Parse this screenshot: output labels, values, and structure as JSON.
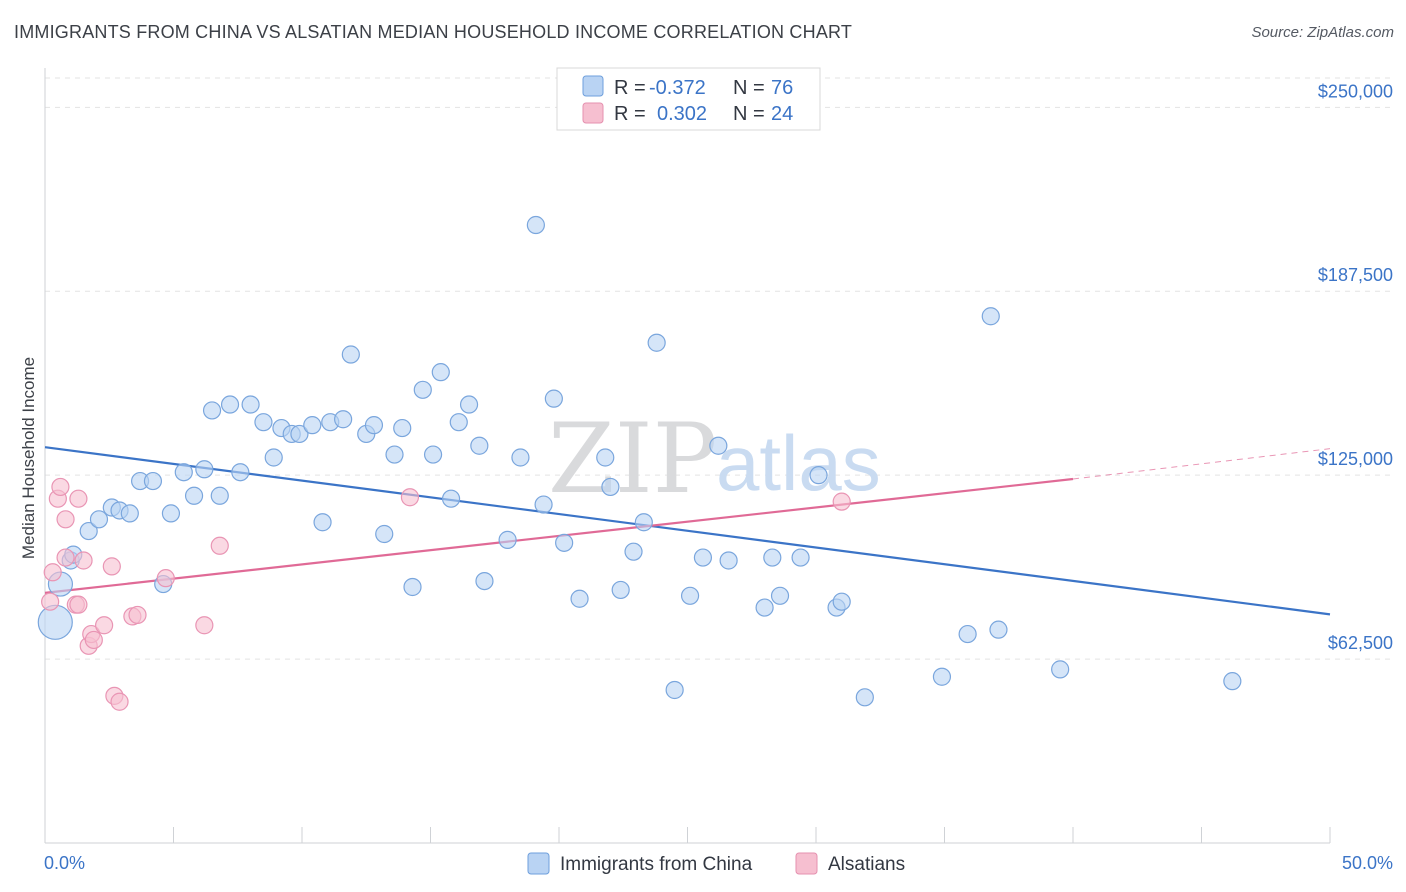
{
  "title": "IMMIGRANTS FROM CHINA VS ALSATIAN MEDIAN HOUSEHOLD INCOME CORRELATION CHART",
  "source": "Source: ZipAtlas.com",
  "watermark": {
    "part1": "ZIP",
    "part2": "atlas"
  },
  "colors": {
    "blue": "#3b74c7",
    "blue_fill": "#b9d3f3",
    "pink": "#e06a96",
    "pink_fill": "#f6bfd0",
    "text": "#333842"
  },
  "legend": {
    "blue": {
      "r_label": "R =",
      "r_value": "-0.372",
      "n_label": "N =",
      "n_value": "76"
    },
    "pink": {
      "r_label": "R =",
      "r_value": "0.302",
      "n_label": "N =",
      "n_value": "24"
    }
  },
  "chart_data": {
    "type": "scatter",
    "title": "IMMIGRANTS FROM CHINA VS ALSATIAN MEDIAN HOUSEHOLD INCOME CORRELATION CHART",
    "xlabel": "",
    "ylabel": "Median Household Income",
    "xlim": [
      0,
      50
    ],
    "ylim": [
      0,
      262000
    ],
    "x_tick_labels": [
      "0.0%",
      "50.0%"
    ],
    "y_ticks": [
      62500,
      125000,
      187500,
      250000
    ],
    "y_tick_labels": [
      "$62,500",
      "$125,000",
      "$187,500",
      "$250,000"
    ],
    "grid": true,
    "legend_position": "top-center",
    "series": [
      {
        "name": "Immigrants from China",
        "color": "#3b74c7",
        "trend": {
          "x": [
            0,
            50
          ],
          "y": [
            134500,
            77700
          ]
        },
        "points": [
          {
            "x": 0.4,
            "y": 75000,
            "s": 3
          },
          {
            "x": 0.6,
            "y": 88000,
            "s": 2
          },
          {
            "x": 1.0,
            "y": 96000,
            "s": 1
          },
          {
            "x": 1.1,
            "y": 98000,
            "s": 1
          },
          {
            "x": 1.7,
            "y": 106000,
            "s": 1
          },
          {
            "x": 2.1,
            "y": 110000,
            "s": 1
          },
          {
            "x": 2.6,
            "y": 114000,
            "s": 1
          },
          {
            "x": 2.9,
            "y": 113000,
            "s": 1
          },
          {
            "x": 3.3,
            "y": 112000,
            "s": 1
          },
          {
            "x": 3.7,
            "y": 123000,
            "s": 1
          },
          {
            "x": 4.2,
            "y": 123000,
            "s": 1
          },
          {
            "x": 4.6,
            "y": 88000,
            "s": 1
          },
          {
            "x": 4.9,
            "y": 112000,
            "s": 1
          },
          {
            "x": 5.4,
            "y": 126000,
            "s": 1
          },
          {
            "x": 5.8,
            "y": 118000,
            "s": 1
          },
          {
            "x": 6.2,
            "y": 127000,
            "s": 1
          },
          {
            "x": 6.5,
            "y": 147000,
            "s": 1
          },
          {
            "x": 6.8,
            "y": 118000,
            "s": 1
          },
          {
            "x": 7.2,
            "y": 149000,
            "s": 1
          },
          {
            "x": 7.6,
            "y": 126000,
            "s": 1
          },
          {
            "x": 8.0,
            "y": 149000,
            "s": 1
          },
          {
            "x": 8.5,
            "y": 143000,
            "s": 1
          },
          {
            "x": 8.9,
            "y": 131000,
            "s": 1
          },
          {
            "x": 9.2,
            "y": 141000,
            "s": 1
          },
          {
            "x": 9.6,
            "y": 139000,
            "s": 1
          },
          {
            "x": 9.9,
            "y": 139000,
            "s": 1
          },
          {
            "x": 10.4,
            "y": 142000,
            "s": 1
          },
          {
            "x": 10.8,
            "y": 109000,
            "s": 1
          },
          {
            "x": 11.1,
            "y": 143000,
            "s": 1
          },
          {
            "x": 11.6,
            "y": 144000,
            "s": 1
          },
          {
            "x": 11.9,
            "y": 166000,
            "s": 1
          },
          {
            "x": 12.5,
            "y": 139000,
            "s": 1
          },
          {
            "x": 12.8,
            "y": 142000,
            "s": 1
          },
          {
            "x": 13.2,
            "y": 105000,
            "s": 1
          },
          {
            "x": 13.6,
            "y": 132000,
            "s": 1
          },
          {
            "x": 13.9,
            "y": 141000,
            "s": 1
          },
          {
            "x": 14.3,
            "y": 87000,
            "s": 1
          },
          {
            "x": 14.7,
            "y": 154000,
            "s": 1
          },
          {
            "x": 15.1,
            "y": 132000,
            "s": 1
          },
          {
            "x": 15.4,
            "y": 160000,
            "s": 1
          },
          {
            "x": 15.8,
            "y": 117000,
            "s": 1
          },
          {
            "x": 16.1,
            "y": 143000,
            "s": 1
          },
          {
            "x": 16.5,
            "y": 149000,
            "s": 1
          },
          {
            "x": 16.9,
            "y": 135000,
            "s": 1
          },
          {
            "x": 17.1,
            "y": 89000,
            "s": 1
          },
          {
            "x": 18.0,
            "y": 103000,
            "s": 1
          },
          {
            "x": 18.5,
            "y": 131000,
            "s": 1
          },
          {
            "x": 19.1,
            "y": 210000,
            "s": 1
          },
          {
            "x": 19.4,
            "y": 115000,
            "s": 1
          },
          {
            "x": 19.8,
            "y": 151000,
            "s": 1
          },
          {
            "x": 20.2,
            "y": 102000,
            "s": 1
          },
          {
            "x": 20.8,
            "y": 83000,
            "s": 1
          },
          {
            "x": 21.8,
            "y": 131000,
            "s": 1
          },
          {
            "x": 22.0,
            "y": 121000,
            "s": 1
          },
          {
            "x": 22.4,
            "y": 86000,
            "s": 1
          },
          {
            "x": 22.9,
            "y": 99000,
            "s": 1
          },
          {
            "x": 23.3,
            "y": 109000,
            "s": 1
          },
          {
            "x": 23.8,
            "y": 170000,
            "s": 1
          },
          {
            "x": 24.5,
            "y": 52000,
            "s": 1
          },
          {
            "x": 25.1,
            "y": 84000,
            "s": 1
          },
          {
            "x": 25.6,
            "y": 97000,
            "s": 1
          },
          {
            "x": 26.2,
            "y": 135000,
            "s": 1
          },
          {
            "x": 26.6,
            "y": 96000,
            "s": 1
          },
          {
            "x": 28.0,
            "y": 80000,
            "s": 1
          },
          {
            "x": 28.6,
            "y": 84000,
            "s": 1
          },
          {
            "x": 28.3,
            "y": 97000,
            "s": 1
          },
          {
            "x": 29.4,
            "y": 97000,
            "s": 1
          },
          {
            "x": 30.1,
            "y": 125000,
            "s": 1
          },
          {
            "x": 30.8,
            "y": 80000,
            "s": 1
          },
          {
            "x": 31.0,
            "y": 82000,
            "s": 1
          },
          {
            "x": 31.9,
            "y": 49500,
            "s": 1
          },
          {
            "x": 34.9,
            "y": 56500,
            "s": 1
          },
          {
            "x": 35.9,
            "y": 71000,
            "s": 1
          },
          {
            "x": 36.8,
            "y": 179000,
            "s": 1
          },
          {
            "x": 37.1,
            "y": 72500,
            "s": 1
          },
          {
            "x": 39.5,
            "y": 59000,
            "s": 1
          },
          {
            "x": 46.2,
            "y": 55000,
            "s": 1
          }
        ]
      },
      {
        "name": "Alsatians",
        "color": "#e06a96",
        "trend": {
          "x": [
            0,
            40
          ],
          "y": [
            85000,
            123700
          ]
        },
        "trend_dashed_extension": {
          "x": [
            40,
            50
          ],
          "y": [
            123700,
            134000
          ]
        },
        "points": [
          {
            "x": 0.2,
            "y": 82000,
            "s": 1
          },
          {
            "x": 0.3,
            "y": 92000,
            "s": 1
          },
          {
            "x": 0.5,
            "y": 117000,
            "s": 1
          },
          {
            "x": 0.6,
            "y": 121000,
            "s": 1
          },
          {
            "x": 0.8,
            "y": 110000,
            "s": 1
          },
          {
            "x": 0.8,
            "y": 97000,
            "s": 1
          },
          {
            "x": 1.2,
            "y": 81000,
            "s": 1
          },
          {
            "x": 1.3,
            "y": 117000,
            "s": 1
          },
          {
            "x": 1.3,
            "y": 81000,
            "s": 1
          },
          {
            "x": 1.5,
            "y": 96000,
            "s": 1
          },
          {
            "x": 1.7,
            "y": 67000,
            "s": 1
          },
          {
            "x": 1.8,
            "y": 71000,
            "s": 1
          },
          {
            "x": 1.9,
            "y": 69000,
            "s": 1
          },
          {
            "x": 2.3,
            "y": 74000,
            "s": 1
          },
          {
            "x": 2.6,
            "y": 94000,
            "s": 1
          },
          {
            "x": 2.7,
            "y": 50000,
            "s": 1
          },
          {
            "x": 2.9,
            "y": 48000,
            "s": 1
          },
          {
            "x": 3.4,
            "y": 77000,
            "s": 1
          },
          {
            "x": 3.6,
            "y": 77500,
            "s": 1
          },
          {
            "x": 4.7,
            "y": 90000,
            "s": 1
          },
          {
            "x": 6.2,
            "y": 74000,
            "s": 1
          },
          {
            "x": 6.8,
            "y": 101000,
            "s": 1
          },
          {
            "x": 14.2,
            "y": 117500,
            "s": 1
          },
          {
            "x": 31.0,
            "y": 116000,
            "s": 1
          }
        ]
      }
    ]
  }
}
